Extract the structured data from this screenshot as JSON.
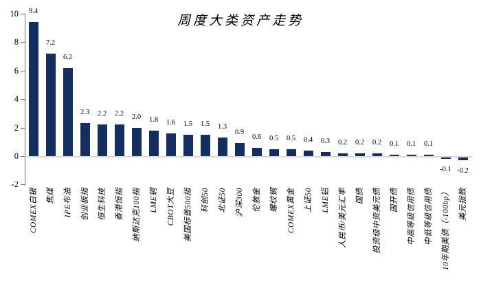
{
  "chart_data": {
    "type": "bar",
    "title": "周度大类资产走势",
    "categories": [
      "COMEX白银",
      "焦煤",
      "IPE布油",
      "创业板指",
      "恒生科技",
      "香港恒指",
      "纳斯达克100指",
      "LME铜",
      "CBOT大豆",
      "美国标普500指",
      "科创50",
      "北证50",
      "沪深300",
      "伦敦金",
      "螺纹钢",
      "COMEX黄金",
      "上证50",
      "LME铝",
      "人民币/美元汇率",
      "国债",
      "投资级中资美元债",
      "国开债",
      "中高等级信用债",
      "中低等级信用债",
      "10年期美债（-100bp）",
      "美元指数"
    ],
    "values": [
      9.4,
      7.2,
      6.2,
      2.3,
      2.2,
      2.2,
      2.0,
      1.8,
      1.6,
      1.5,
      1.5,
      1.3,
      0.9,
      0.6,
      0.5,
      0.5,
      0.4,
      0.3,
      0.2,
      0.2,
      0.2,
      0.1,
      0.1,
      0.1,
      -0.1,
      -0.2
    ],
    "value_label_format": "one-decimal",
    "xlabel": "",
    "ylabel": "",
    "ylim": [
      -2,
      10
    ],
    "yticks": [
      10,
      8,
      6,
      4,
      2,
      0,
      -2
    ],
    "grid": "zero-line-only",
    "legend_position": "none",
    "bar_color": "#132e5f",
    "zero_line_color": "#d9d9d9",
    "axis_color": "#6e6e6e",
    "text_color": "#000000"
  }
}
